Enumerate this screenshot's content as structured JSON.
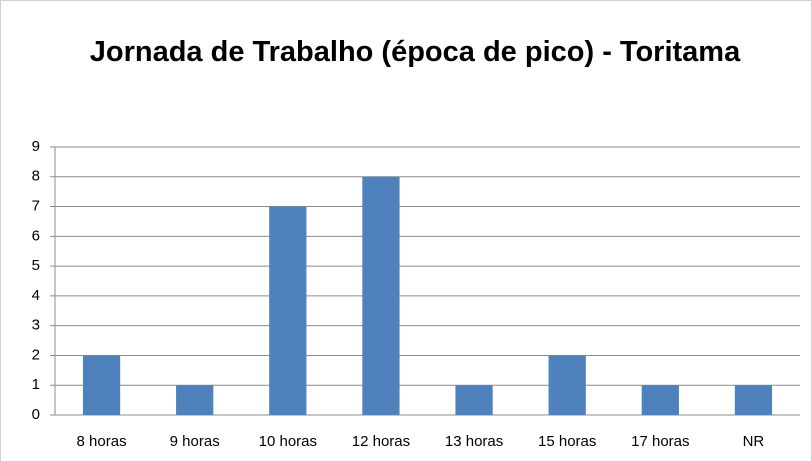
{
  "chart_data": {
    "type": "bar",
    "title": "Jornada de Trabalho (época de pico) - Toritama",
    "categories": [
      "8 horas",
      "9 horas",
      "10 horas",
      "12 horas",
      "13 horas",
      "15 horas",
      "17 horas",
      "NR"
    ],
    "values": [
      2,
      1,
      7,
      8,
      1,
      2,
      1,
      1
    ],
    "color": "#4f81bd",
    "ylim": [
      0,
      9
    ],
    "yticks": [
      0,
      1,
      2,
      3,
      4,
      5,
      6,
      7,
      8,
      9
    ],
    "grid": true
  }
}
